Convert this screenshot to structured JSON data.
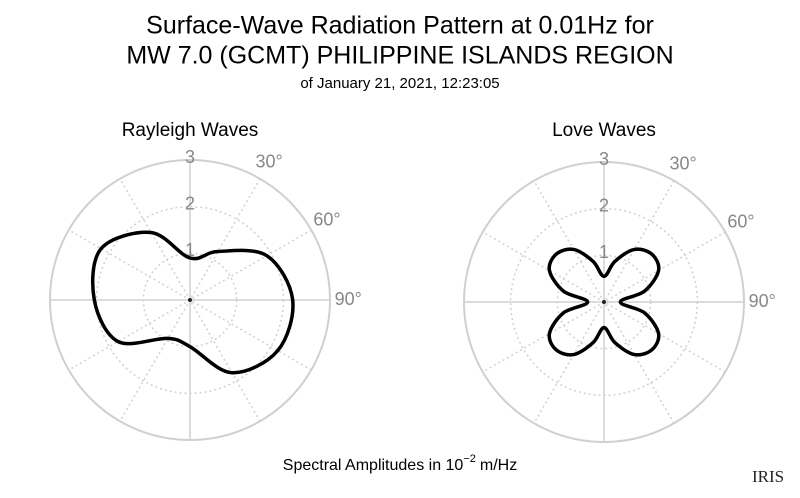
{
  "title": [
    "Surface-Wave Radiation Pattern at 0.01Hz for",
    "MW 7.0 (GCMT) PHILIPPINE ISLANDS REGION"
  ],
  "subtitle": "of January 21, 2021, 12:23:05",
  "footnote": {
    "text": "Spectral Amplitudes in 10",
    "exponent": "−2",
    "unit": "m/Hz"
  },
  "logo": "IRIS",
  "chart_data": [
    {
      "type": "polar",
      "title": "Rayleigh Waves",
      "rlim": [
        0,
        3
      ],
      "rticks": [
        1,
        2,
        3
      ],
      "thetaticks": [
        {
          "value": 30,
          "label": "30°"
        },
        {
          "value": 60,
          "label": "60°"
        },
        {
          "value": 90,
          "label": "90°"
        }
      ],
      "grid": true,
      "series": [
        {
          "color": "#000000",
          "theta": [
            0,
            30,
            60,
            90,
            120,
            150,
            180,
            210,
            240,
            270,
            300,
            330
          ],
          "values": [
            0.9,
            1.2,
            1.9,
            2.2,
            2.17,
            1.8,
            1.0,
            0.95,
            1.78,
            2.05,
            2.2,
            1.67
          ]
        }
      ]
    },
    {
      "type": "polar",
      "title": "Love Waves",
      "rlim": [
        0,
        3
      ],
      "rticks": [
        1,
        2,
        3
      ],
      "thetaticks": [
        {
          "value": 30,
          "label": "30°"
        },
        {
          "value": 60,
          "label": "60°"
        },
        {
          "value": 90,
          "label": "90°"
        }
      ],
      "grid": true,
      "series": [
        {
          "color": "#000000",
          "theta": [
            0,
            15,
            30,
            45,
            60,
            75,
            90,
            105,
            120,
            135,
            150,
            165,
            180,
            195,
            210,
            225,
            240,
            255,
            270,
            285,
            300,
            315,
            330,
            345
          ],
          "values": [
            0.55,
            0.9,
            1.3,
            1.45,
            1.35,
            0.9,
            0.35,
            0.9,
            1.35,
            1.45,
            1.3,
            0.9,
            0.55,
            0.9,
            1.3,
            1.45,
            1.35,
            0.9,
            0.35,
            0.9,
            1.35,
            1.45,
            1.3,
            0.9
          ]
        }
      ]
    }
  ]
}
